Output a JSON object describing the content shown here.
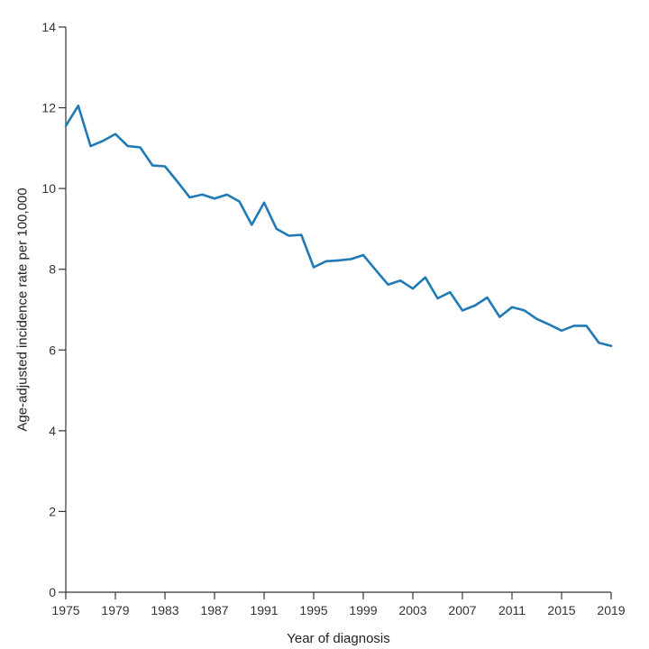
{
  "chart_data": {
    "type": "line",
    "title": "",
    "xlabel": "Year of diagnosis",
    "ylabel": "Age-adjusted incidence rate per 100,000",
    "xlim": [
      1975,
      2019
    ],
    "ylim": [
      0,
      14
    ],
    "x_ticks": [
      "1975",
      "1979",
      "1983",
      "1987",
      "1991",
      "1995",
      "1999",
      "2003",
      "2007",
      "2011",
      "2015",
      "2019"
    ],
    "y_ticks": [
      "0",
      "2",
      "4",
      "6",
      "8",
      "10",
      "12",
      "14"
    ],
    "grid": false,
    "legend": "none",
    "colors": {
      "series": "#1f7ab5",
      "axis": "#333333"
    },
    "series": [
      {
        "x": [
          1975,
          1976,
          1977,
          1978,
          1979,
          1980,
          1981,
          1982,
          1983,
          1984,
          1985,
          1986,
          1987,
          1988,
          1989,
          1990,
          1991,
          1992,
          1993,
          1994,
          1995,
          1996,
          1997,
          1998,
          1999,
          2000,
          2001,
          2002,
          2003,
          2004,
          2005,
          2006,
          2007,
          2008,
          2009,
          2010,
          2011,
          2012,
          2013,
          2014,
          2015,
          2016,
          2017,
          2018,
          2019
        ],
        "values": [
          11.55,
          12.05,
          11.05,
          11.18,
          11.35,
          11.05,
          11.02,
          10.57,
          10.55,
          10.17,
          9.78,
          9.85,
          9.75,
          9.85,
          9.68,
          9.1,
          9.65,
          9.0,
          8.83,
          8.85,
          8.05,
          8.2,
          8.22,
          8.25,
          8.35,
          7.98,
          7.62,
          7.72,
          7.52,
          7.8,
          7.28,
          7.43,
          6.98,
          7.1,
          7.3,
          6.82,
          7.06,
          6.98,
          6.77,
          6.63,
          6.48,
          6.6,
          6.6,
          6.18,
          6.1
        ]
      }
    ]
  }
}
